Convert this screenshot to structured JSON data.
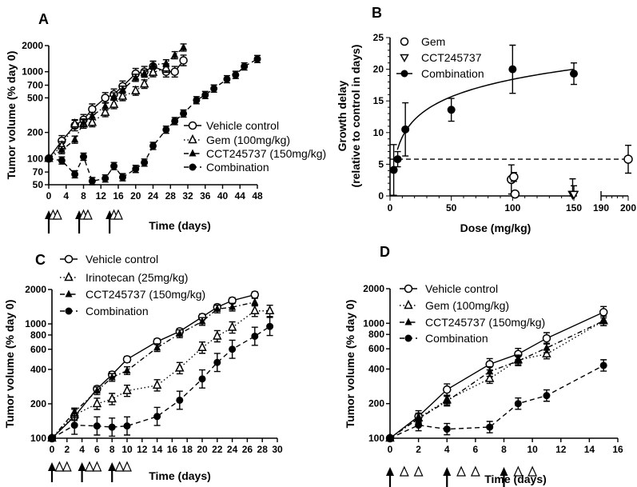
{
  "chart_data": [
    {
      "panel": "A",
      "type": "line",
      "yscale": "log",
      "ylabel": "Tumor volume  (% day 0)",
      "xlabel": "Time (days)",
      "xlim": [
        0,
        48
      ],
      "ylim": [
        50,
        2000
      ],
      "xticks": [
        0,
        4,
        8,
        12,
        16,
        20,
        24,
        28,
        32,
        36,
        40,
        44,
        48
      ],
      "yticks": [
        50,
        70,
        100,
        200,
        500,
        700,
        1000,
        2000
      ],
      "dosing": {
        "arrow_days": [
          0,
          7,
          14
        ],
        "triangle_days": [
          1,
          2,
          8,
          9,
          15,
          16
        ]
      },
      "series": [
        {
          "name": "Vehicle control",
          "marker": "open-circle",
          "line": "solid",
          "x": [
            0,
            3,
            6,
            8,
            10,
            13,
            15,
            17,
            20,
            22,
            24,
            27,
            29,
            31
          ],
          "y": [
            100,
            160,
            240,
            280,
            370,
            500,
            550,
            680,
            950,
            1000,
            1150,
            1000,
            1000,
            1350
          ],
          "err": 0.15
        },
        {
          "name": "Gem (100mg/kg)",
          "marker": "open-triangle",
          "line": "dotted",
          "x": [
            0,
            3,
            6,
            8,
            10,
            13,
            15,
            17,
            20,
            22,
            24,
            27
          ],
          "y": [
            100,
            140,
            250,
            250,
            260,
            340,
            420,
            520,
            600,
            720,
            980,
            1100
          ],
          "err": 0.12
        },
        {
          "name": "CCT245737 (150mg/kg)",
          "marker": "filled-triangle",
          "line": "dashdot",
          "x": [
            0,
            3,
            6,
            8,
            10,
            13,
            15,
            17,
            20,
            22,
            24,
            27,
            29,
            31
          ],
          "y": [
            100,
            125,
            165,
            260,
            310,
            400,
            520,
            620,
            850,
            950,
            1200,
            1250,
            1550,
            1900
          ],
          "err": 0.1
        },
        {
          "name": "Combination",
          "marker": "filled-circle",
          "line": "dashed",
          "x": [
            0,
            3,
            6,
            8,
            10,
            13,
            15,
            17,
            20,
            22,
            24,
            27,
            29,
            31,
            34,
            36,
            38,
            41,
            43,
            45,
            48
          ],
          "y": [
            100,
            95,
            66,
            105,
            55,
            59,
            82,
            61,
            76,
            90,
            140,
            215,
            270,
            330,
            470,
            540,
            640,
            820,
            920,
            1150,
            1400
          ],
          "err": 0.1
        }
      ]
    },
    {
      "panel": "B",
      "type": "scatter",
      "ylabel": [
        "Growth delay",
        "(relative to control in days)"
      ],
      "xlabel": "Dose (mg/kg)",
      "xlim": [
        0,
        200
      ],
      "xbreak": [
        150,
        190
      ],
      "ylim": [
        0,
        25
      ],
      "xticks": [
        0,
        50,
        100,
        150,
        190,
        200
      ],
      "yticks": [
        0,
        5,
        10,
        15,
        20,
        25
      ],
      "reference_line": 5.8,
      "series": [
        {
          "name": "Gem",
          "marker": "open-circle",
          "x": [
            99,
            101,
            102,
            200
          ],
          "y": [
            2.6,
            3.0,
            0.3,
            5.8
          ],
          "err": [
            2.3,
            0.7,
            0,
            2.2
          ]
        },
        {
          "name": "CCT245737",
          "marker": "open-triangle-down",
          "x": [
            149,
            150
          ],
          "y": [
            0.2,
            0.2
          ],
          "err": [
            2.5,
            1.4
          ]
        },
        {
          "name": "Combination",
          "marker": "filled-circle",
          "line": "solid",
          "fit": "logarithmic",
          "x": [
            3,
            6.25,
            12.5,
            50,
            100,
            150
          ],
          "y": [
            4.1,
            5.8,
            10.5,
            13.6,
            20.0,
            19.3
          ],
          "err": [
            4,
            1.2,
            4.2,
            1.8,
            3.8,
            1.7
          ]
        }
      ]
    },
    {
      "panel": "C",
      "type": "line",
      "yscale": "log",
      "ylabel": "Tumor volume (% day 0)",
      "xlabel": "Time (days)",
      "xlim": [
        0,
        30
      ],
      "ylim": [
        100,
        2000
      ],
      "xticks": [
        0,
        2,
        4,
        6,
        8,
        10,
        12,
        14,
        16,
        18,
        20,
        22,
        24,
        26,
        28,
        30
      ],
      "yticks": [
        100,
        200,
        400,
        600,
        800,
        1000,
        2000
      ],
      "dosing": {
        "arrow_days": [
          0,
          4,
          8
        ],
        "triangle_days": [
          1,
          2,
          5,
          6,
          9,
          10
        ]
      },
      "series": [
        {
          "name": "Vehicle control",
          "marker": "open-circle",
          "line": "solid",
          "x": [
            0,
            3,
            6,
            8,
            10,
            14,
            17,
            20,
            22,
            24,
            27
          ],
          "y": [
            100,
            155,
            270,
            360,
            490,
            700,
            860,
            1150,
            1400,
            1600,
            1800
          ],
          "err": 0.06
        },
        {
          "name": "Irinotecan (25mg/kg)",
          "marker": "open-triangle",
          "line": "dotted",
          "x": [
            0,
            3,
            6,
            8,
            10,
            14,
            17,
            20,
            22,
            24,
            27,
            29
          ],
          "y": [
            100,
            160,
            200,
            220,
            260,
            290,
            410,
            620,
            780,
            930,
            1300,
            1300
          ],
          "err": 0.12
        },
        {
          "name": "CCT245737 (150mg/kg)",
          "marker": "filled-triangle",
          "line": "dashdot",
          "x": [
            0,
            3,
            6,
            8,
            10,
            14,
            17,
            20,
            22,
            24,
            27
          ],
          "y": [
            100,
            170,
            260,
            340,
            390,
            620,
            820,
            1050,
            1350,
            1400,
            1550
          ],
          "err": 0.08
        },
        {
          "name": "Combination",
          "marker": "filled-circle",
          "line": "dashed",
          "x": [
            0,
            3,
            6,
            8,
            10,
            14,
            17,
            20,
            22,
            24,
            27,
            29
          ],
          "y": [
            100,
            130,
            128,
            125,
            128,
            155,
            215,
            330,
            460,
            600,
            780,
            950
          ],
          "err": 0.2
        }
      ]
    },
    {
      "panel": "D",
      "type": "line",
      "yscale": "log",
      "ylabel": "Tumor volume  (% day 0)",
      "xlabel": "Time (days)",
      "xlim": [
        0,
        16
      ],
      "ylim": [
        100,
        2000
      ],
      "xticks": [
        0,
        2,
        4,
        6,
        8,
        10,
        12,
        14,
        16
      ],
      "yticks": [
        100,
        200,
        400,
        600,
        800,
        1000,
        2000
      ],
      "dosing": {
        "arrow_days": [
          0,
          4,
          8
        ],
        "triangle_days": [
          1,
          2,
          5,
          6,
          9,
          10
        ]
      },
      "series": [
        {
          "name": "Vehicle control",
          "marker": "open-circle",
          "line": "solid",
          "x": [
            0,
            2,
            4,
            7,
            9,
            11,
            15
          ],
          "y": [
            100,
            155,
            265,
            440,
            540,
            740,
            1250
          ],
          "err": 0.12
        },
        {
          "name": "Gem (100mg/kg)",
          "marker": "open-triangle",
          "line": "dotted",
          "x": [
            0,
            2,
            4,
            7,
            9,
            11,
            15
          ],
          "y": [
            100,
            150,
            215,
            330,
            480,
            540,
            1050
          ],
          "err": 0.1
        },
        {
          "name": "CCT245737 (150mg/kg)",
          "marker": "filled-triangle",
          "line": "dashdot",
          "x": [
            0,
            2,
            4,
            7,
            9,
            11,
            15
          ],
          "y": [
            100,
            148,
            210,
            380,
            470,
            610,
            1050
          ],
          "err": 0.1
        },
        {
          "name": "Combination",
          "marker": "filled-circle",
          "line": "dashed",
          "x": [
            0,
            2,
            4,
            7,
            9,
            11,
            15
          ],
          "y": [
            100,
            130,
            120,
            125,
            200,
            235,
            430
          ],
          "err": 0.12
        }
      ]
    }
  ]
}
